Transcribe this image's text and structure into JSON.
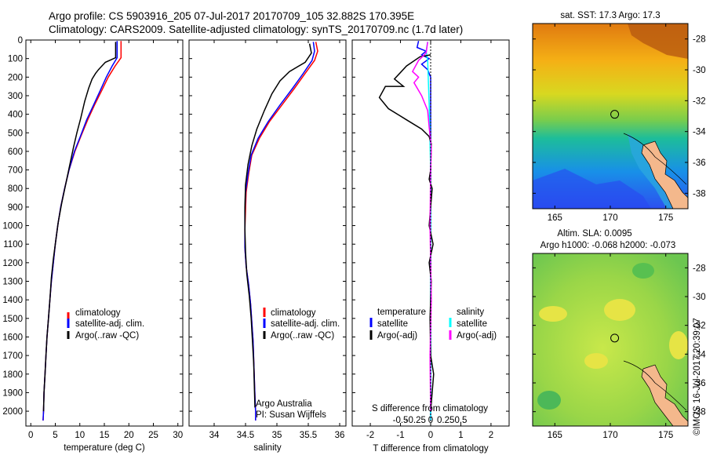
{
  "header": {
    "line1": "Argo profile: CS 5903916_205 07-Jul-2017 20170709_105 32.882S 170.395E",
    "line2": "Climatology: CARS2009. Satellite-adjusted climatology: synTS_20170709.nc (1.7d later)"
  },
  "colors": {
    "climatology": "#ff0000",
    "satellite": "#0000ff",
    "argo": "#000000",
    "satellite_s": "#00ffff",
    "argo_s": "#ff00ff",
    "land": "#f4b88c"
  },
  "legend": {
    "climatology": "climatology",
    "satellite_adj": "satellite-adj. clim.",
    "argo_raw": "Argo(..raw -QC)",
    "temperature_head": "temperature",
    "salinity_head": "salinity",
    "satellite": "satellite",
    "argo_adj": "Argo(-adj)"
  },
  "credits": {
    "org": "Argo Australia",
    "pi": "PI: Susan Wijffels",
    "stamp": "©IMOS 16-Jul-2017 20:39:07"
  },
  "maps": {
    "sst_title": "sat. SST: 17.3 Argo: 17.3",
    "sla_title1": "Altim. SLA: 0.0095",
    "sla_title2": "Argo h1000: -0.068 h2000: -0.073",
    "lat_labels": [
      "-28",
      "-30",
      "-32",
      "-34",
      "-36",
      "-38"
    ],
    "lon_labels": [
      "165",
      "170",
      "175"
    ],
    "lat_range": [
      -39,
      -27
    ],
    "lon_range": [
      163,
      177
    ],
    "float_position": {
      "lat": -32.882,
      "lon": 170.395
    }
  },
  "chart_data": [
    {
      "type": "line",
      "name": "temperature",
      "xlabel": "temperature (deg C)",
      "ylabel": "",
      "xlim": [
        -1,
        31
      ],
      "ylim": [
        2080,
        0
      ],
      "xticks": [
        "0",
        "5",
        "10",
        "15",
        "20",
        "25",
        "30"
      ],
      "yticks": [
        "0",
        "100",
        "200",
        "300",
        "400",
        "500",
        "600",
        "700",
        "800",
        "900",
        "1000",
        "1100",
        "1200",
        "1300",
        "1400",
        "1500",
        "1600",
        "1700",
        "1800",
        "1900",
        "2000"
      ],
      "series": [
        {
          "name": "climatology",
          "color": "#ff0000",
          "points": [
            [
              18.4,
              5
            ],
            [
              18.4,
              95
            ],
            [
              17.2,
              140
            ],
            [
              15.8,
              200
            ],
            [
              14.5,
              270
            ],
            [
              13.0,
              350
            ],
            [
              11.6,
              430
            ],
            [
              10.2,
              520
            ],
            [
              9.0,
              600
            ],
            [
              7.8,
              700
            ],
            [
              6.9,
              800
            ],
            [
              6.1,
              900
            ],
            [
              5.5,
              1000
            ],
            [
              5.0,
              1100
            ],
            [
              4.6,
              1200
            ],
            [
              4.2,
              1300
            ],
            [
              3.9,
              1400
            ],
            [
              3.6,
              1500
            ],
            [
              3.3,
              1600
            ],
            [
              3.1,
              1700
            ],
            [
              2.9,
              1800
            ],
            [
              2.7,
              1900
            ],
            [
              2.6,
              2000
            ],
            [
              2.5,
              2050
            ]
          ]
        },
        {
          "name": "satellite-adj. clim.",
          "color": "#0000ff",
          "points": [
            [
              17.6,
              5
            ],
            [
              17.6,
              95
            ],
            [
              16.6,
              140
            ],
            [
              15.4,
              200
            ],
            [
              14.2,
              270
            ],
            [
              12.8,
              350
            ],
            [
              11.4,
              430
            ],
            [
              10.1,
              520
            ],
            [
              8.9,
              600
            ],
            [
              7.8,
              700
            ],
            [
              6.9,
              800
            ],
            [
              6.1,
              900
            ],
            [
              5.5,
              1000
            ],
            [
              5.0,
              1100
            ],
            [
              4.6,
              1200
            ],
            [
              4.2,
              1300
            ],
            [
              3.9,
              1400
            ],
            [
              3.6,
              1500
            ],
            [
              3.3,
              1600
            ],
            [
              3.1,
              1700
            ],
            [
              2.9,
              1800
            ],
            [
              2.7,
              1900
            ],
            [
              2.6,
              2000
            ],
            [
              2.5,
              2050
            ]
          ]
        },
        {
          "name": "Argo(..raw -QC)",
          "color": "#000000",
          "points": [
            [
              17.3,
              10
            ],
            [
              17.3,
              95
            ],
            [
              15.2,
              120
            ],
            [
              13.8,
              160
            ],
            [
              13.2,
              180
            ],
            [
              12.5,
              210
            ],
            [
              11.8,
              260
            ],
            [
              11.0,
              330
            ],
            [
              10.2,
              420
            ],
            [
              9.4,
              500
            ],
            [
              8.7,
              580
            ],
            [
              7.9,
              680
            ],
            [
              7.1,
              780
            ],
            [
              6.3,
              880
            ],
            [
              5.6,
              980
            ],
            [
              5.1,
              1080
            ],
            [
              4.6,
              1180
            ],
            [
              4.2,
              1280
            ],
            [
              3.9,
              1400
            ],
            [
              3.6,
              1500
            ],
            [
              3.3,
              1600
            ],
            [
              3.1,
              1700
            ],
            [
              2.9,
              1800
            ],
            [
              2.7,
              1900
            ],
            [
              2.6,
              2000
            ]
          ]
        }
      ]
    },
    {
      "type": "line",
      "name": "salinity",
      "xlabel": "salinity",
      "ylabel": "",
      "xlim": [
        33.6,
        36.1
      ],
      "ylim": [
        2080,
        0
      ],
      "xticks": [
        "34",
        "34.5",
        "35",
        "35.5",
        "36"
      ],
      "series": [
        {
          "name": "climatology",
          "color": "#ff0000",
          "points": [
            [
              35.62,
              10
            ],
            [
              35.65,
              60
            ],
            [
              35.6,
              110
            ],
            [
              35.45,
              180
            ],
            [
              35.28,
              260
            ],
            [
              35.08,
              350
            ],
            [
              34.88,
              440
            ],
            [
              34.72,
              530
            ],
            [
              34.6,
              620
            ],
            [
              34.55,
              720
            ],
            [
              34.51,
              820
            ],
            [
              34.5,
              920
            ],
            [
              34.49,
              1020
            ],
            [
              34.49,
              1120
            ],
            [
              34.51,
              1220
            ],
            [
              34.55,
              1320
            ],
            [
              34.58,
              1420
            ],
            [
              34.6,
              1520
            ],
            [
              34.62,
              1620
            ],
            [
              34.63,
              1720
            ],
            [
              34.64,
              1820
            ],
            [
              34.65,
              1920
            ],
            [
              34.66,
              2000
            ],
            [
              34.66,
              2050
            ]
          ]
        },
        {
          "name": "satellite-adj. clim.",
          "color": "#0000ff",
          "points": [
            [
              35.58,
              10
            ],
            [
              35.6,
              60
            ],
            [
              35.56,
              110
            ],
            [
              35.42,
              180
            ],
            [
              35.25,
              260
            ],
            [
              35.05,
              350
            ],
            [
              34.86,
              440
            ],
            [
              34.7,
              530
            ],
            [
              34.59,
              620
            ],
            [
              34.54,
              720
            ],
            [
              34.5,
              820
            ],
            [
              34.49,
              920
            ],
            [
              34.49,
              1020
            ],
            [
              34.49,
              1120
            ],
            [
              34.51,
              1220
            ],
            [
              34.55,
              1320
            ],
            [
              34.58,
              1420
            ],
            [
              34.6,
              1520
            ],
            [
              34.62,
              1620
            ],
            [
              34.63,
              1720
            ],
            [
              34.64,
              1820
            ],
            [
              34.65,
              1920
            ],
            [
              34.66,
              2000
            ],
            [
              34.66,
              2050
            ]
          ]
        },
        {
          "name": "Argo(..raw -QC)",
          "color": "#000000",
          "points": [
            [
              35.52,
              20
            ],
            [
              35.55,
              70
            ],
            [
              35.45,
              120
            ],
            [
              35.2,
              170
            ],
            [
              35.05,
              220
            ],
            [
              34.92,
              290
            ],
            [
              34.8,
              380
            ],
            [
              34.68,
              480
            ],
            [
              34.6,
              570
            ],
            [
              34.54,
              670
            ],
            [
              34.5,
              780
            ],
            [
              34.49,
              900
            ],
            [
              34.49,
              1020
            ],
            [
              34.5,
              1140
            ],
            [
              34.52,
              1260
            ],
            [
              34.56,
              1380
            ],
            [
              34.59,
              1500
            ],
            [
              34.61,
              1620
            ],
            [
              34.63,
              1740
            ],
            [
              34.64,
              1860
            ],
            [
              34.65,
              1980
            ]
          ]
        }
      ]
    },
    {
      "type": "line",
      "name": "difference",
      "xlabel": "T difference from climatology",
      "xlabel_top": "S difference from climatology",
      "xlim": [
        -2.6,
        2.6
      ],
      "ylim": [
        2080,
        0
      ],
      "xticks_T": [
        "-2",
        "-1",
        "0",
        "1",
        "2"
      ],
      "xticks_T_values": [
        -2,
        -1,
        0,
        1,
        2
      ],
      "xticks_S": [
        "-0.5",
        "-0.25",
        "0",
        "0.25",
        "0.5"
      ],
      "xticks_S_values": [
        -1,
        -0.5,
        0,
        0.5,
        1
      ],
      "series": [
        {
          "name": "temperature satellite",
          "color": "#0000ff",
          "points": [
            [
              -0.4,
              5
            ],
            [
              -0.45,
              40
            ],
            [
              -0.15,
              60
            ],
            [
              -0.3,
              80
            ],
            [
              -0.05,
              100
            ],
            [
              -0.3,
              130
            ],
            [
              -0.1,
              160
            ],
            [
              0,
              200
            ],
            [
              0,
              2050
            ]
          ]
        },
        {
          "name": "salinity satellite",
          "color": "#00ffff",
          "points": [
            [
              -0.1,
              10
            ],
            [
              -0.15,
              60
            ],
            [
              -0.1,
              110
            ],
            [
              -0.08,
              200
            ],
            [
              -0.05,
              350
            ],
            [
              -0.02,
              550
            ],
            [
              0,
              700
            ],
            [
              0,
              2050
            ]
          ]
        },
        {
          "name": "temperature Argo(-adj)",
          "color": "#000000",
          "points": [
            [
              0,
              80
            ],
            [
              -0.35,
              90
            ],
            [
              -0.8,
              140
            ],
            [
              -1.2,
              210
            ],
            [
              -0.9,
              250
            ],
            [
              -1.5,
              250
            ],
            [
              -1.7,
              310
            ],
            [
              -1.4,
              370
            ],
            [
              -0.8,
              430
            ],
            [
              -0.3,
              480
            ],
            [
              -0.05,
              520
            ],
            [
              0.02,
              560
            ],
            [
              0,
              700
            ],
            [
              -0.05,
              750
            ],
            [
              0.05,
              800
            ],
            [
              -0.05,
              1000
            ],
            [
              0.08,
              1100
            ],
            [
              -0.05,
              1200
            ],
            [
              0.02,
              1300
            ],
            [
              -0.02,
              1500
            ],
            [
              0,
              1700
            ],
            [
              0.1,
              1800
            ],
            [
              0.05,
              1900
            ],
            [
              0,
              2000
            ]
          ]
        },
        {
          "name": "salinity Argo(-adj)",
          "color": "#ff00ff",
          "points": [
            [
              -0.1,
              10
            ],
            [
              -0.15,
              70
            ],
            [
              -0.4,
              110
            ],
            [
              -0.6,
              170
            ],
            [
              -0.4,
              200
            ],
            [
              -0.55,
              230
            ],
            [
              -0.3,
              300
            ],
            [
              -0.1,
              380
            ],
            [
              -0.05,
              470
            ],
            [
              0.02,
              580
            ],
            [
              0,
              700
            ],
            [
              -0.02,
              1000
            ],
            [
              0.02,
              1400
            ],
            [
              -0.02,
              1700
            ],
            [
              0,
              2000
            ]
          ]
        }
      ]
    }
  ]
}
